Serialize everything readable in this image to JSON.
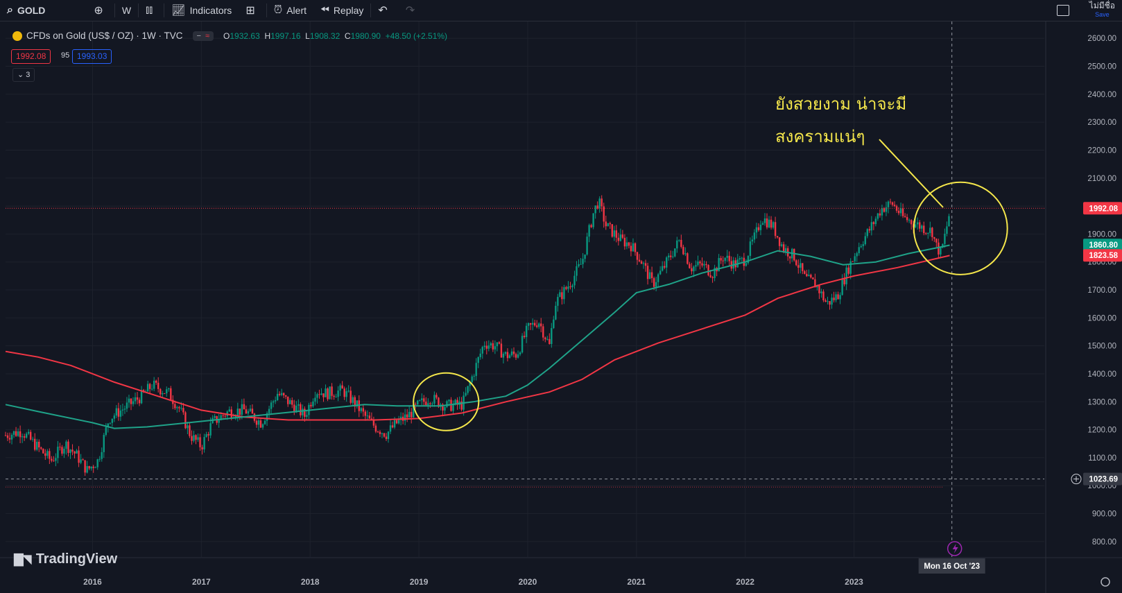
{
  "toolbar": {
    "symbol": "GOLD",
    "interval": "W",
    "indicators_label": "Indicators",
    "alert_label": "Alert",
    "replay_label": "Replay",
    "layout_name": "ไม่มีชื่อ",
    "save_label": "Save"
  },
  "legend": {
    "title": "CFDs on Gold (US$ / OZ) · 1W · TVC",
    "open_label": "O",
    "open": "1932.63",
    "high_label": "H",
    "high": "1997.16",
    "low_label": "L",
    "low": "1908.32",
    "close_label": "C",
    "close": "1980.90",
    "change": "+48.50 (+2.51%)",
    "sell_price": "1992.08",
    "spread": "95",
    "buy_price": "1993.03",
    "indicators_count": "3"
  },
  "watermark": "TradingView",
  "annotation": {
    "line1": "ยังสวยงาม น่าจะมี",
    "line2": "สงครามแน่ๆ"
  },
  "colors": {
    "background": "#131722",
    "up": "#089981",
    "down": "#f23645",
    "ma_green": "#1fa389",
    "ma_red": "#f23645",
    "annotation": "#f5e74b"
  },
  "chart_data": {
    "type": "candlestick",
    "title": "CFDs on Gold (US$ / OZ) · 1W · TVC",
    "x_ticks": [
      "2016",
      "2017",
      "2018",
      "2019",
      "2020",
      "2021",
      "2022",
      "2023"
    ],
    "y_ticks": [
      "800.00",
      "900.00",
      "1000.00",
      "1100.00",
      "1200.00",
      "1300.00",
      "1400.00",
      "1500.00",
      "1600.00",
      "1700.00",
      "1800.00",
      "1900.00",
      "2000.00",
      "2100.00",
      "2200.00",
      "2300.00",
      "2400.00",
      "2500.00",
      "2600.00"
    ],
    "ylim": [
      745,
      2660
    ],
    "xlim": [
      2015.2,
      2024.75
    ],
    "price_path": [
      [
        2015.2,
        1180
      ],
      [
        2015.35,
        1195
      ],
      [
        2015.5,
        1135
      ],
      [
        2015.62,
        1090
      ],
      [
        2015.75,
        1150
      ],
      [
        2015.85,
        1110
      ],
      [
        2015.95,
        1055
      ],
      [
        2016.05,
        1090
      ],
      [
        2016.15,
        1240
      ],
      [
        2016.3,
        1280
      ],
      [
        2016.45,
        1320
      ],
      [
        2016.55,
        1360
      ],
      [
        2016.7,
        1330
      ],
      [
        2016.8,
        1275
      ],
      [
        2016.9,
        1180
      ],
      [
        2017.0,
        1140
      ],
      [
        2017.1,
        1225
      ],
      [
        2017.25,
        1265
      ],
      [
        2017.4,
        1270
      ],
      [
        2017.55,
        1225
      ],
      [
        2017.7,
        1330
      ],
      [
        2017.85,
        1285
      ],
      [
        2017.95,
        1250
      ],
      [
        2018.05,
        1340
      ],
      [
        2018.15,
        1330
      ],
      [
        2018.3,
        1340
      ],
      [
        2018.4,
        1300
      ],
      [
        2018.5,
        1250
      ],
      [
        2018.6,
        1210
      ],
      [
        2018.7,
        1185
      ],
      [
        2018.8,
        1225
      ],
      [
        2018.9,
        1250
      ],
      [
        2019.0,
        1290
      ],
      [
        2019.1,
        1315
      ],
      [
        2019.25,
        1285
      ],
      [
        2019.4,
        1290
      ],
      [
        2019.5,
        1400
      ],
      [
        2019.6,
        1510
      ],
      [
        2019.7,
        1500
      ],
      [
        2019.8,
        1465
      ],
      [
        2019.9,
        1470
      ],
      [
        2020.0,
        1560
      ],
      [
        2020.1,
        1590
      ],
      [
        2020.2,
        1500
      ],
      [
        2020.25,
        1650
      ],
      [
        2020.4,
        1730
      ],
      [
        2020.5,
        1800
      ],
      [
        2020.6,
        1970
      ],
      [
        2020.65,
        2020
      ],
      [
        2020.72,
        1930
      ],
      [
        2020.85,
        1880
      ],
      [
        2020.95,
        1860
      ],
      [
        2021.05,
        1800
      ],
      [
        2021.15,
        1720
      ],
      [
        2021.25,
        1780
      ],
      [
        2021.4,
        1880
      ],
      [
        2021.5,
        1780
      ],
      [
        2021.6,
        1790
      ],
      [
        2021.7,
        1760
      ],
      [
        2021.8,
        1820
      ],
      [
        2021.9,
        1790
      ],
      [
        2022.0,
        1810
      ],
      [
        2022.1,
        1900
      ],
      [
        2022.15,
        1960
      ],
      [
        2022.25,
        1930
      ],
      [
        2022.35,
        1850
      ],
      [
        2022.45,
        1820
      ],
      [
        2022.55,
        1740
      ],
      [
        2022.65,
        1720
      ],
      [
        2022.75,
        1650
      ],
      [
        2022.85,
        1680
      ],
      [
        2022.95,
        1780
      ],
      [
        2023.05,
        1860
      ],
      [
        2023.15,
        1920
      ],
      [
        2023.25,
        1990
      ],
      [
        2023.35,
        2010
      ],
      [
        2023.45,
        1960
      ],
      [
        2023.55,
        1940
      ],
      [
        2023.65,
        1920
      ],
      [
        2023.72,
        1910
      ],
      [
        2023.75,
        1860
      ],
      [
        2023.8,
        1830
      ],
      [
        2023.85,
        1920
      ],
      [
        2023.88,
        1980
      ]
    ],
    "ma_green": [
      [
        2015.2,
        1290
      ],
      [
        2015.5,
        1265
      ],
      [
        2016.0,
        1225
      ],
      [
        2016.2,
        1205
      ],
      [
        2016.5,
        1210
      ],
      [
        2017.0,
        1230
      ],
      [
        2017.5,
        1250
      ],
      [
        2018.0,
        1270
      ],
      [
        2018.5,
        1290
      ],
      [
        2018.8,
        1285
      ],
      [
        2019.2,
        1285
      ],
      [
        2019.5,
        1300
      ],
      [
        2019.8,
        1320
      ],
      [
        2020.0,
        1360
      ],
      [
        2020.2,
        1420
      ],
      [
        2020.5,
        1520
      ],
      [
        2020.8,
        1620
      ],
      [
        2021.0,
        1690
      ],
      [
        2021.3,
        1720
      ],
      [
        2021.6,
        1760
      ],
      [
        2022.0,
        1800
      ],
      [
        2022.3,
        1840
      ],
      [
        2022.6,
        1820
      ],
      [
        2022.9,
        1790
      ],
      [
        2023.2,
        1800
      ],
      [
        2023.5,
        1830
      ],
      [
        2023.88,
        1860
      ]
    ],
    "ma_red": [
      [
        2015.2,
        1480
      ],
      [
        2015.5,
        1460
      ],
      [
        2015.8,
        1430
      ],
      [
        2016.2,
        1370
      ],
      [
        2016.6,
        1320
      ],
      [
        2017.0,
        1270
      ],
      [
        2017.4,
        1245
      ],
      [
        2017.8,
        1235
      ],
      [
        2018.2,
        1235
      ],
      [
        2018.6,
        1235
      ],
      [
        2019.0,
        1240
      ],
      [
        2019.4,
        1260
      ],
      [
        2019.8,
        1300
      ],
      [
        2020.2,
        1335
      ],
      [
        2020.5,
        1380
      ],
      [
        2020.8,
        1450
      ],
      [
        2021.2,
        1510
      ],
      [
        2021.6,
        1560
      ],
      [
        2022.0,
        1610
      ],
      [
        2022.3,
        1670
      ],
      [
        2022.7,
        1720
      ],
      [
        2023.0,
        1750
      ],
      [
        2023.4,
        1780
      ],
      [
        2023.88,
        1823
      ]
    ],
    "last_price": "1992.08",
    "ma_green_value": "1860.80",
    "ma_red_value": "1823.58",
    "crosshair_price": "1023.69",
    "crosshair_date": "Mon 16 Oct '23",
    "crosshair_x": 2023.9,
    "crosshair_y": 1023.69,
    "hline_price": 995,
    "circles": [
      {
        "cx": 2019.25,
        "cy": 1300,
        "rx": 0.3,
        "ry": 103
      },
      {
        "cx": 2023.98,
        "cy": 1920,
        "rx": 0.43,
        "ry": 165
      }
    ]
  }
}
